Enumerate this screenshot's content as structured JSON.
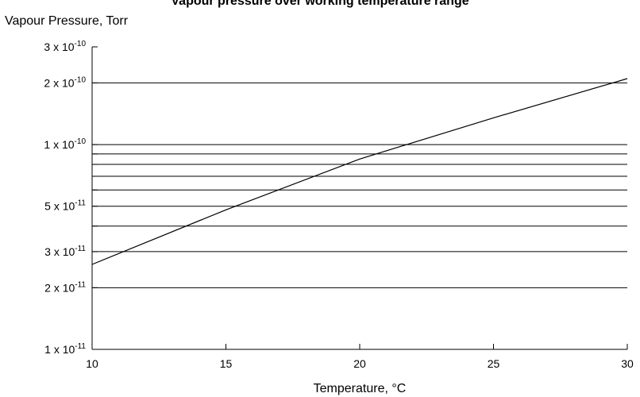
{
  "chart_data": {
    "type": "line",
    "title": "Vapour pressure over working temperature range",
    "ylabel": "Vapour Pressure, Torr",
    "xlabel": "Temperature, °C",
    "xlim": [
      10,
      30
    ],
    "ylim": [
      1e-11,
      3e-10
    ],
    "y_scale": "log",
    "grid": "horizontal",
    "x_ticks": [
      {
        "value": 10,
        "label": "10"
      },
      {
        "value": 15,
        "label": "15"
      },
      {
        "value": 20,
        "label": "20"
      },
      {
        "value": 25,
        "label": "25"
      },
      {
        "value": 30,
        "label": "30"
      }
    ],
    "y_tick_labels": [
      {
        "value": 1e-11,
        "mantissa": "1",
        "exponent": "-11"
      },
      {
        "value": 2e-11,
        "mantissa": "2",
        "exponent": "-11"
      },
      {
        "value": 3e-11,
        "mantissa": "3",
        "exponent": "-11"
      },
      {
        "value": 5e-11,
        "mantissa": "5",
        "exponent": "-11"
      },
      {
        "value": 1e-10,
        "mantissa": "1",
        "exponent": "-10"
      },
      {
        "value": 2e-10,
        "mantissa": "2",
        "exponent": "-10"
      },
      {
        "value": 3e-10,
        "mantissa": "3",
        "exponent": "-10"
      }
    ],
    "gridline_values": [
      2e-11,
      3e-11,
      4e-11,
      5e-11,
      6e-11,
      7e-11,
      8e-11,
      9e-11,
      1e-10,
      2e-10
    ],
    "minor_tick_values": [
      4e-11,
      6e-11,
      7e-11,
      8e-11,
      9e-11
    ],
    "series": [
      {
        "x": [
          10,
          15,
          20,
          25,
          30
        ],
        "y": [
          2.6e-11,
          4.8e-11,
          8.5e-11,
          1.35e-10,
          2.1e-10
        ]
      }
    ],
    "colors": {
      "line": "#000000",
      "grid": "#000000",
      "background": "#ffffff"
    }
  }
}
